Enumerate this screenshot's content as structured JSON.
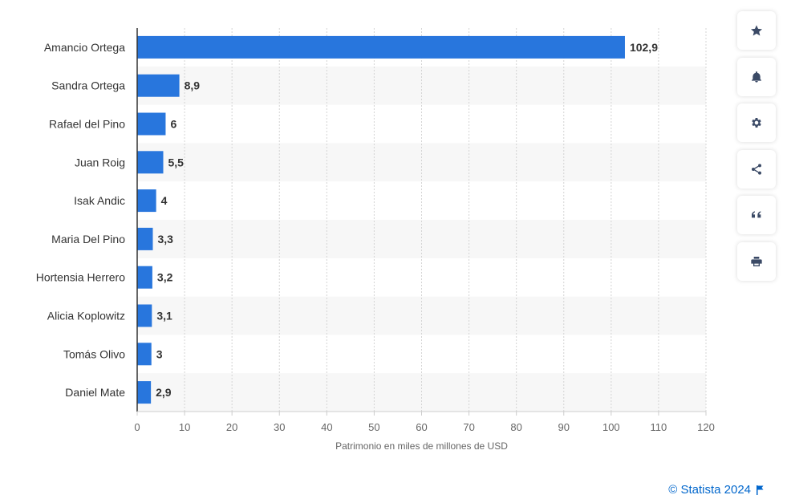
{
  "chart_data": {
    "type": "bar",
    "orientation": "horizontal",
    "categories": [
      "Amancio Ortega",
      "Sandra Ortega",
      "Rafael del Pino",
      "Juan Roig",
      "Isak Andic",
      "Maria Del Pino",
      "Hortensia Herrero",
      "Alicia Koplowitz",
      "Tomás Olivo",
      "Daniel Mate"
    ],
    "values": [
      102.9,
      8.9,
      6,
      5.5,
      4,
      3.3,
      3.2,
      3.1,
      3,
      2.9
    ],
    "value_labels": [
      "102,9",
      "8,9",
      "6",
      "5,5",
      "4",
      "3,3",
      "3,2",
      "3,1",
      "3",
      "2,9"
    ],
    "xlabel": "Patrimonio en miles de millones de USD",
    "ylabel": "",
    "xlim": [
      0,
      120
    ],
    "ticks": [
      0,
      10,
      20,
      30,
      40,
      50,
      60,
      70,
      80,
      90,
      100,
      110,
      120
    ],
    "grid": true,
    "bar_color": "#2876dd"
  },
  "toolbar": [
    {
      "name": "star-icon",
      "label": "Favorito"
    },
    {
      "name": "bell-icon",
      "label": "Notificación"
    },
    {
      "name": "gear-icon",
      "label": "Ajustes"
    },
    {
      "name": "share-icon",
      "label": "Compartir"
    },
    {
      "name": "quote-icon",
      "label": "Citar"
    },
    {
      "name": "print-icon",
      "label": "Imprimir"
    }
  ],
  "credit": {
    "text": "© Statista 2024",
    "icon": "flag-icon"
  }
}
